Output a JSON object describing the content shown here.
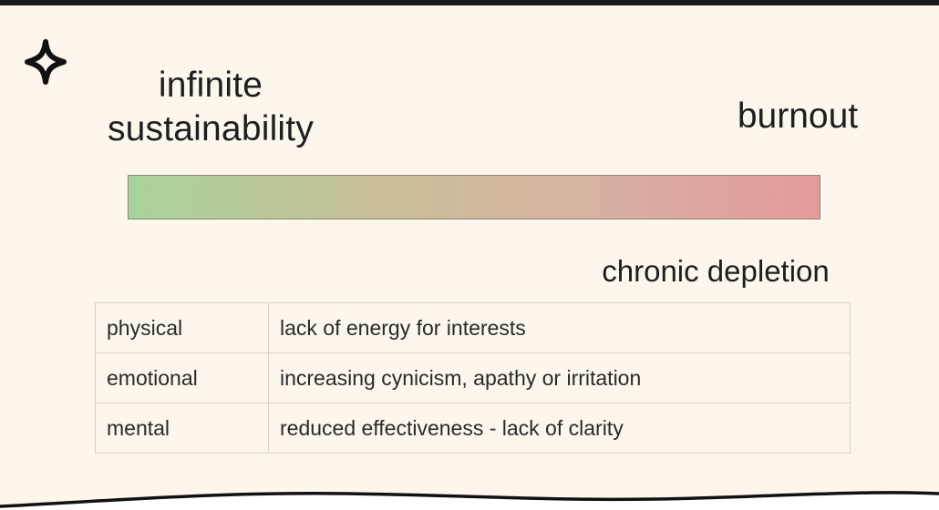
{
  "icons": {
    "corner": "sparkle-icon"
  },
  "spectrum": {
    "left_label": [
      "infinite",
      "sustainability"
    ],
    "right_label": "burnout",
    "bottom_label": "chronic depletion",
    "colors": {
      "start": "#a8d29a",
      "end": "#e39a98"
    }
  },
  "table": {
    "rows": [
      {
        "category": "physical",
        "description": "lack of energy for interests"
      },
      {
        "category": "emotional",
        "description": "increasing cynicism, apathy or irritation"
      },
      {
        "category": "mental",
        "description": "reduced effectiveness - lack of clarity"
      }
    ]
  }
}
